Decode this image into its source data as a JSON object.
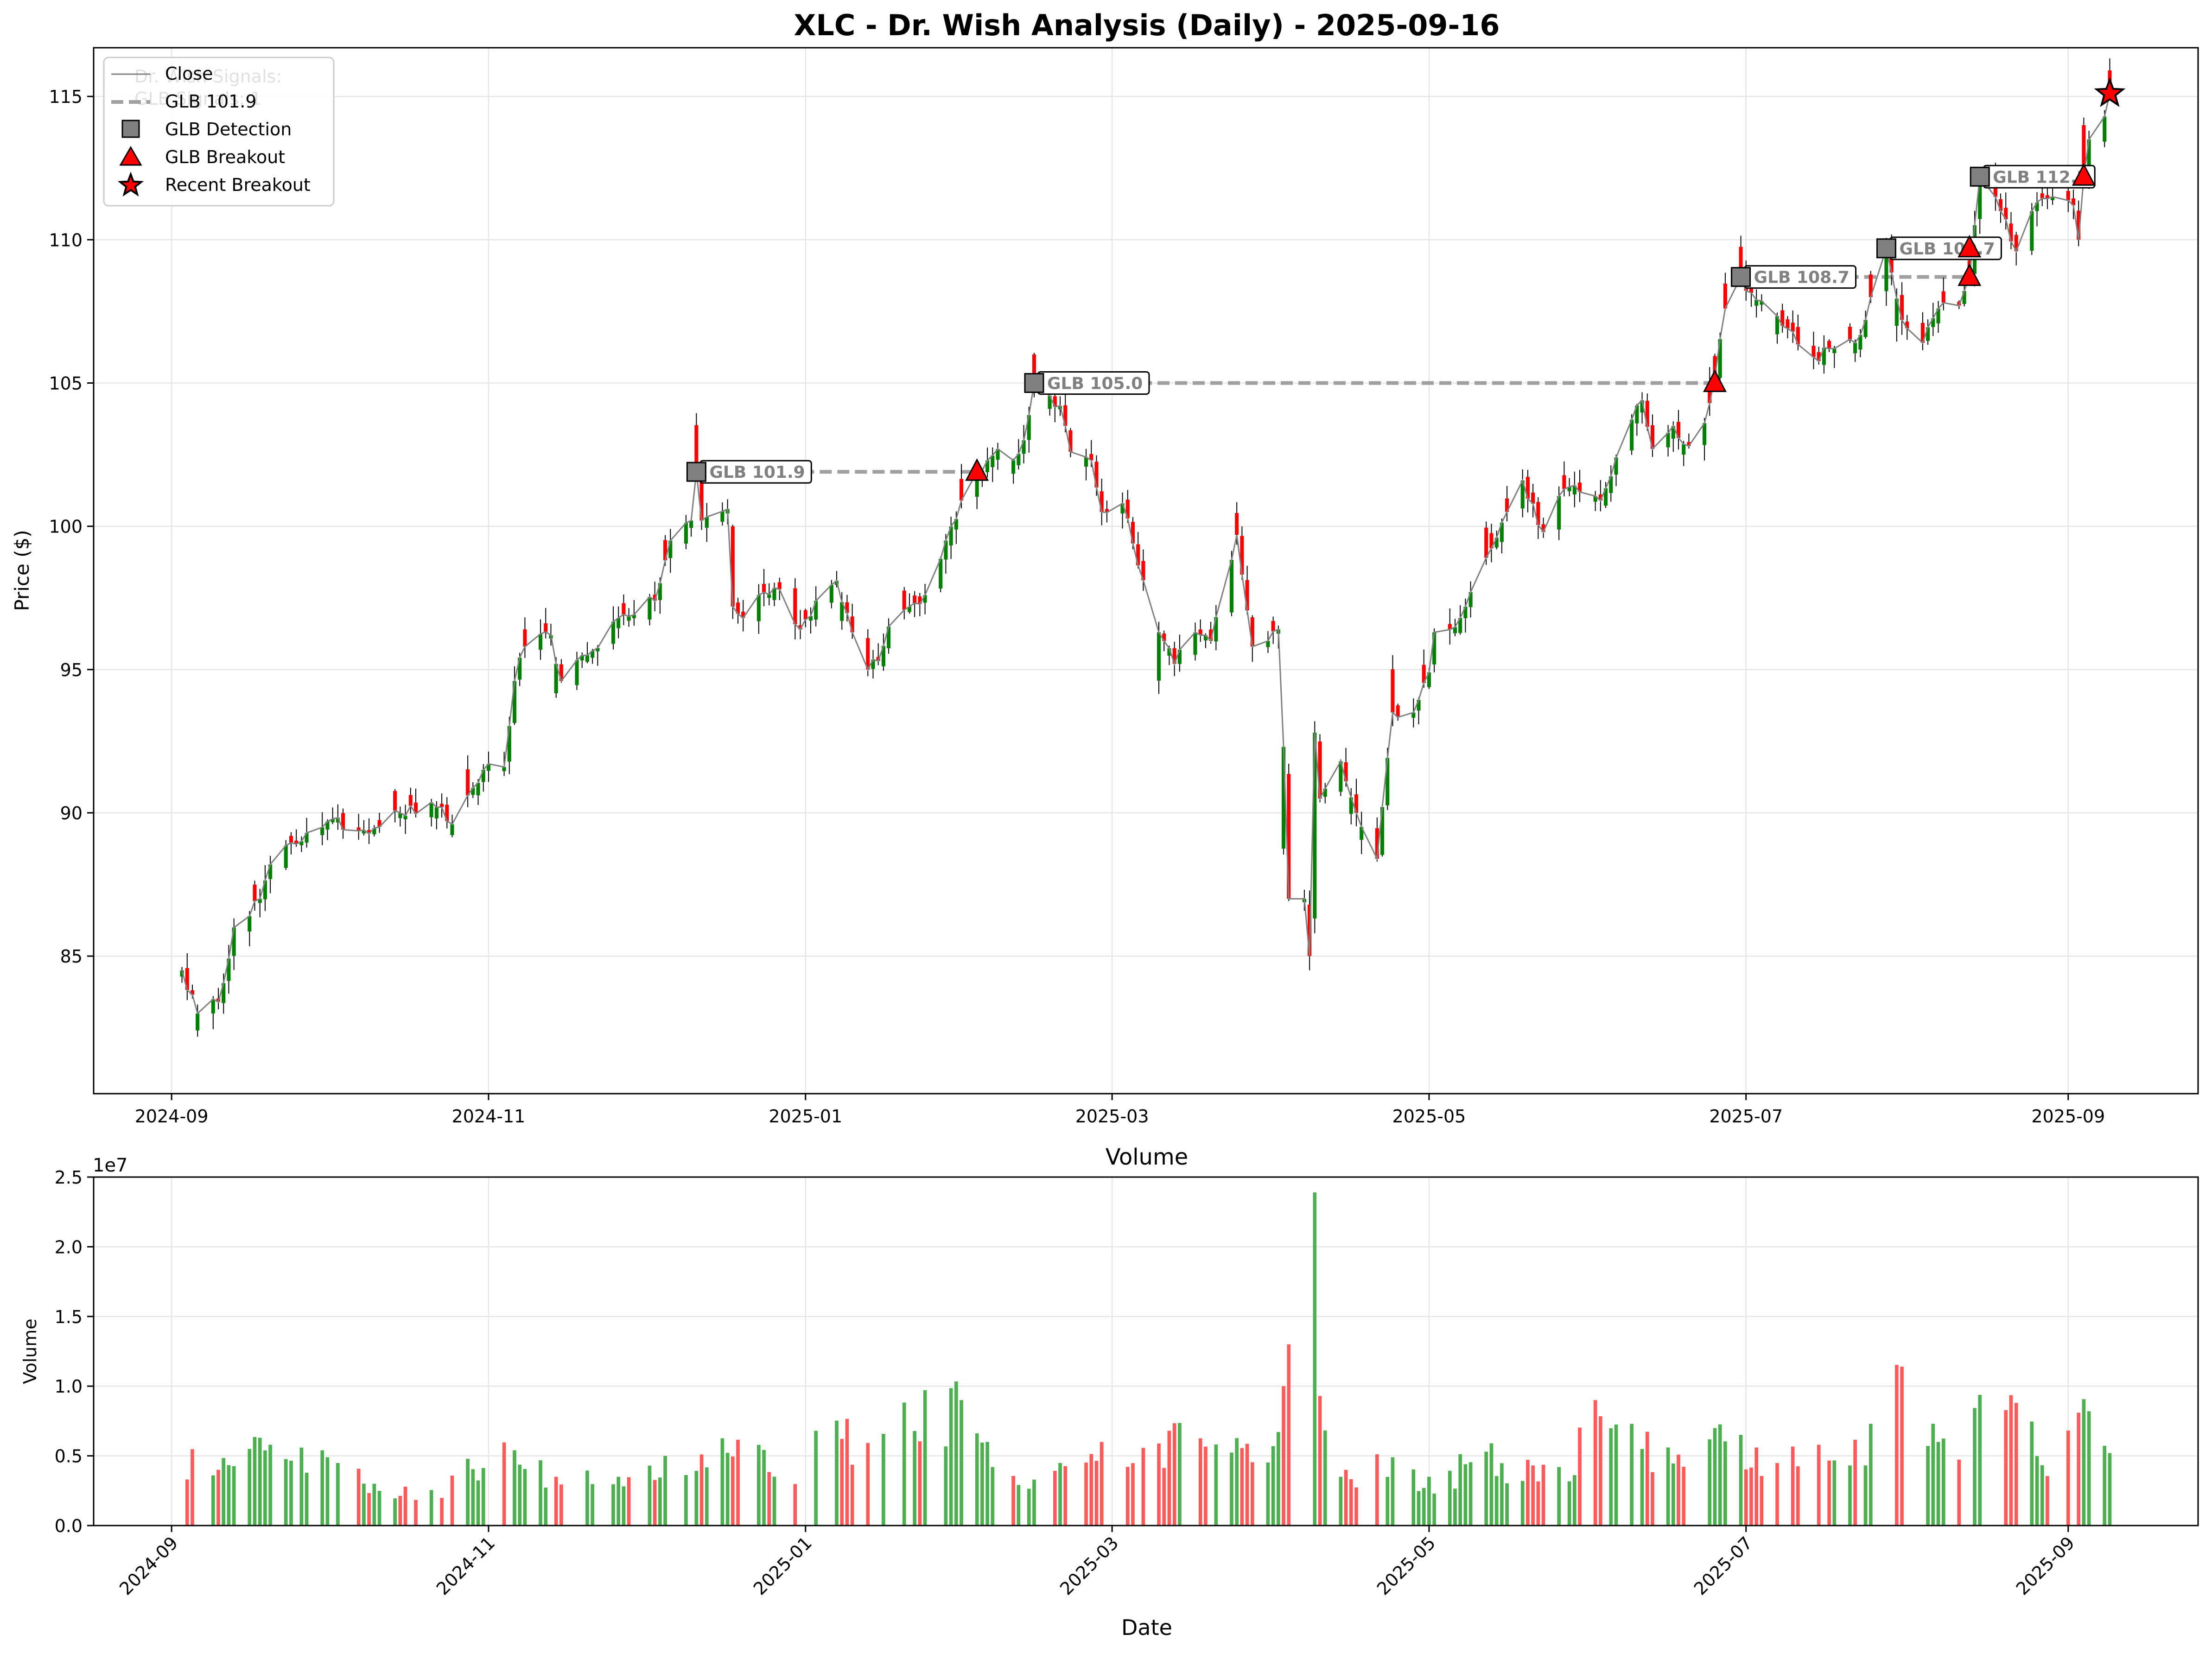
{
  "colors": {
    "up": "#008000",
    "down": "#ff0000",
    "close_line": "#808080",
    "glb_line": "#a0a0a0",
    "detection_marker": "#808080",
    "breakout_marker": "#ff0000",
    "vol_up": "#4caf50",
    "vol_down": "#ff5a5a"
  },
  "chart_data": [
    {
      "type": "candlestick",
      "title": "XLC - Dr. Wish Analysis (Daily) - 2025-09-16",
      "xlabel": "",
      "ylabel": "Price ($)",
      "x_range": [
        "2024-08-17",
        "2025-09-26"
      ],
      "ylim": [
        80.2,
        116.7
      ],
      "yticks": [
        85,
        90,
        95,
        100,
        105,
        110,
        115
      ],
      "xticks": [
        "2024-09",
        "2024-11",
        "2025-01",
        "2025-03",
        "2025-05",
        "2025-07",
        "2025-09"
      ],
      "grid": true,
      "legend_position": "top-left",
      "legend": [
        "Close",
        "GLB 101.9",
        "GLB Detection",
        "GLB Breakout",
        "Recent Breakout"
      ],
      "faded_text_behind_legend": [
        "Dr. Wish Signals:",
        "GLB Signals: 1"
      ],
      "close_anchors": [
        [
          "2024-09-03",
          84.5
        ],
        [
          "2024-09-06",
          83.0
        ],
        [
          "2024-09-10",
          83.4
        ],
        [
          "2024-09-13",
          86.0
        ],
        [
          "2024-09-18",
          87.0
        ],
        [
          "2024-09-20",
          88.2
        ],
        [
          "2024-09-27",
          89.3
        ],
        [
          "2024-10-01",
          89.7
        ],
        [
          "2024-10-08",
          89.4
        ],
        [
          "2024-10-15",
          90.0
        ],
        [
          "2024-10-22",
          90.2
        ],
        [
          "2024-10-25",
          89.6
        ],
        [
          "2024-10-31",
          91.5
        ],
        [
          "2024-11-04",
          91.6
        ],
        [
          "2024-11-06",
          94.6
        ],
        [
          "2024-11-08",
          95.8
        ],
        [
          "2024-11-13",
          96.2
        ],
        [
          "2024-11-15",
          94.6
        ],
        [
          "2024-11-20",
          95.5
        ],
        [
          "2024-11-26",
          96.8
        ],
        [
          "2024-12-03",
          97.4
        ],
        [
          "2024-12-06",
          99.5
        ],
        [
          "2024-12-10",
          100.2
        ],
        [
          "2024-12-11",
          101.9
        ],
        [
          "2024-12-12",
          100.2
        ],
        [
          "2024-12-17",
          100.6
        ],
        [
          "2024-12-18",
          97.2
        ],
        [
          "2024-12-20",
          96.8
        ],
        [
          "2024-12-23",
          97.6
        ],
        [
          "2024-12-27",
          97.8
        ],
        [
          "2024-12-31",
          96.4
        ],
        [
          "2025-01-03",
          97.4
        ],
        [
          "2025-01-07",
          98.1
        ],
        [
          "2025-01-10",
          96.3
        ],
        [
          "2025-01-13",
          95.0
        ],
        [
          "2025-01-15",
          95.3
        ],
        [
          "2025-01-17",
          96.5
        ],
        [
          "2025-01-21",
          97.2
        ],
        [
          "2025-01-24",
          97.6
        ],
        [
          "2025-01-28",
          99.5
        ],
        [
          "2025-01-31",
          100.9
        ],
        [
          "2025-02-03",
          101.9
        ],
        [
          "2025-02-05",
          102.3
        ],
        [
          "2025-02-07",
          102.7
        ],
        [
          "2025-02-10",
          102.3
        ],
        [
          "2025-02-12",
          103.0
        ],
        [
          "2025-02-14",
          105.0
        ],
        [
          "2025-02-19",
          104.2
        ],
        [
          "2025-02-21",
          102.6
        ],
        [
          "2025-02-25",
          102.3
        ],
        [
          "2025-02-27",
          100.5
        ],
        [
          "2025-03-03",
          100.8
        ],
        [
          "2025-03-05",
          99.4
        ],
        [
          "2025-03-10",
          96.3
        ],
        [
          "2025-03-13",
          95.2
        ],
        [
          "2025-03-17",
          96.3
        ],
        [
          "2025-03-20",
          96.0
        ],
        [
          "2025-03-25",
          99.7
        ],
        [
          "2025-03-28",
          95.8
        ],
        [
          "2025-03-31",
          96.0
        ],
        [
          "2025-04-02",
          96.4
        ],
        [
          "2025-04-03",
          92.3
        ],
        [
          "2025-04-04",
          87.0
        ],
        [
          "2025-04-07",
          87.0
        ],
        [
          "2025-04-08",
          85.0
        ],
        [
          "2025-04-09",
          92.8
        ],
        [
          "2025-04-10",
          90.5
        ],
        [
          "2025-04-14",
          91.8
        ],
        [
          "2025-04-17",
          90.0
        ],
        [
          "2025-04-21",
          88.4
        ],
        [
          "2025-04-22",
          90.2
        ],
        [
          "2025-04-24",
          93.5
        ],
        [
          "2025-04-28",
          93.5
        ],
        [
          "2025-05-01",
          94.9
        ],
        [
          "2025-05-02",
          96.3
        ],
        [
          "2025-05-07",
          96.8
        ],
        [
          "2025-05-12",
          98.9
        ],
        [
          "2025-05-14",
          99.6
        ],
        [
          "2025-05-16",
          100.5
        ],
        [
          "2025-05-19",
          101.6
        ],
        [
          "2025-05-23",
          99.8
        ],
        [
          "2025-05-27",
          101.3
        ],
        [
          "2025-05-30",
          101.2
        ],
        [
          "2025-06-03",
          100.9
        ],
        [
          "2025-06-06",
          102.4
        ],
        [
          "2025-06-11",
          104.4
        ],
        [
          "2025-06-13",
          102.7
        ],
        [
          "2025-06-17",
          103.5
        ],
        [
          "2025-06-20",
          102.8
        ],
        [
          "2025-06-23",
          103.6
        ],
        [
          "2025-06-25",
          105.2
        ],
        [
          "2025-06-27",
          107.6
        ],
        [
          "2025-06-30",
          108.7
        ],
        [
          "2025-07-03",
          107.9
        ],
        [
          "2025-07-09",
          106.9
        ],
        [
          "2025-07-14",
          105.9
        ],
        [
          "2025-07-18",
          106.2
        ],
        [
          "2025-07-22",
          106.4
        ],
        [
          "2025-07-24",
          107.2
        ],
        [
          "2025-07-28",
          109.7
        ],
        [
          "2025-07-31",
          107.2
        ],
        [
          "2025-08-04",
          106.4
        ],
        [
          "2025-08-07",
          107.6
        ],
        [
          "2025-08-11",
          107.7
        ],
        [
          "2025-08-13",
          108.7
        ],
        [
          "2025-08-15",
          112.2
        ],
        [
          "2025-08-19",
          111.0
        ],
        [
          "2025-08-22",
          109.6
        ],
        [
          "2025-08-26",
          111.3
        ],
        [
          "2025-08-29",
          111.5
        ],
        [
          "2025-09-02",
          111.2
        ],
        [
          "2025-09-03",
          110.0
        ],
        [
          "2025-09-04",
          112.2
        ],
        [
          "2025-09-05",
          113.5
        ],
        [
          "2025-09-08",
          114.3
        ],
        [
          "2025-09-09",
          115.1
        ]
      ],
      "glb_levels": [
        {
          "label": "GLB 101.9",
          "value": 101.9,
          "detected": "2024-12-11",
          "breakout": "2025-02-03"
        },
        {
          "label": "GLB 105.0",
          "value": 105.0,
          "detected": "2025-02-14",
          "breakout": "2025-06-25"
        },
        {
          "label": "GLB 108.7",
          "value": 108.7,
          "detected": "2025-06-30",
          "breakout": "2025-08-13"
        },
        {
          "label": "GLB 109.7",
          "value": 109.7,
          "detected": "2025-07-28",
          "breakout": "2025-08-13"
        },
        {
          "label": "GLB 112.2",
          "value": 112.2,
          "detected": "2025-08-15",
          "breakout": "2025-09-04"
        }
      ],
      "breakout_points": [
        [
          "2025-02-03",
          101.9
        ],
        [
          "2025-06-25",
          105.0
        ],
        [
          "2025-08-13",
          108.7
        ],
        [
          "2025-08-13",
          109.7
        ],
        [
          "2025-09-04",
          112.2
        ]
      ],
      "recent_breakout": [
        "2025-09-09",
        115.1
      ]
    },
    {
      "type": "bar",
      "title": "Volume",
      "xlabel": "Date",
      "ylabel": "Volume",
      "offset_label": "1e7",
      "ylim": [
        0,
        25000000
      ],
      "yticks": [
        "0.0",
        "0.5",
        "1.0",
        "1.5",
        "2.0",
        "2.5"
      ],
      "xticks": [
        "2024-09",
        "2024-11",
        "2025-01",
        "2025-03",
        "2025-05",
        "2025-07",
        "2025-09"
      ],
      "grid": true,
      "volume_anchors": [
        [
          "2024-09-03",
          5200000
        ],
        [
          "2024-09-10",
          4000000
        ],
        [
          "2024-09-16",
          5500000
        ],
        [
          "2024-09-20",
          5800000
        ],
        [
          "2024-10-01",
          4900000
        ],
        [
          "2024-10-10",
          3000000
        ],
        [
          "2024-10-22",
          3000000
        ],
        [
          "2024-11-01",
          5700000
        ],
        [
          "2024-11-06",
          5400000
        ],
        [
          "2024-11-14",
          3500000
        ],
        [
          "2024-12-02",
          4300000
        ],
        [
          "2024-12-12",
          5100000
        ],
        [
          "2024-12-20",
          6300000
        ],
        [
          "2024-12-31",
          3500000
        ],
        [
          "2025-01-03",
          6800000
        ],
        [
          "2025-01-15",
          7000000
        ],
        [
          "2025-01-27",
          9300000
        ],
        [
          "2025-01-31",
          9000000
        ],
        [
          "2025-02-05",
          6000000
        ],
        [
          "2025-02-14",
          3300000
        ],
        [
          "2025-02-27",
          6000000
        ],
        [
          "2025-03-06",
          7300000
        ],
        [
          "2025-03-12",
          6800000
        ],
        [
          "2025-03-20",
          5800000
        ],
        [
          "2025-04-01",
          5700000
        ],
        [
          "2025-04-03",
          10000000
        ],
        [
          "2025-04-04",
          13000000
        ],
        [
          "2025-04-07",
          22000000
        ],
        [
          "2025-04-08",
          13500000
        ],
        [
          "2025-04-09",
          23900000
        ],
        [
          "2025-04-10",
          9300000
        ],
        [
          "2025-04-14",
          3500000
        ],
        [
          "2025-04-24",
          4900000
        ],
        [
          "2025-05-01",
          3500000
        ],
        [
          "2025-05-12",
          5300000
        ],
        [
          "2025-05-27",
          3800000
        ],
        [
          "2025-06-02",
          9000000
        ],
        [
          "2025-06-09",
          7300000
        ],
        [
          "2025-06-16",
          5600000
        ],
        [
          "2025-06-23",
          7200000
        ],
        [
          "2025-07-03",
          5600000
        ],
        [
          "2025-07-15",
          5800000
        ],
        [
          "2025-07-25",
          7300000
        ],
        [
          "2025-07-31",
          11400000
        ],
        [
          "2025-08-01",
          9200000
        ],
        [
          "2025-08-07",
          6000000
        ],
        [
          "2025-08-13",
          8100000
        ],
        [
          "2025-08-22",
          8800000
        ],
        [
          "2025-08-29",
          4300000
        ],
        [
          "2025-09-03",
          8100000
        ],
        [
          "2025-09-05",
          8200000
        ],
        [
          "2025-09-09",
          5200000
        ]
      ]
    }
  ]
}
